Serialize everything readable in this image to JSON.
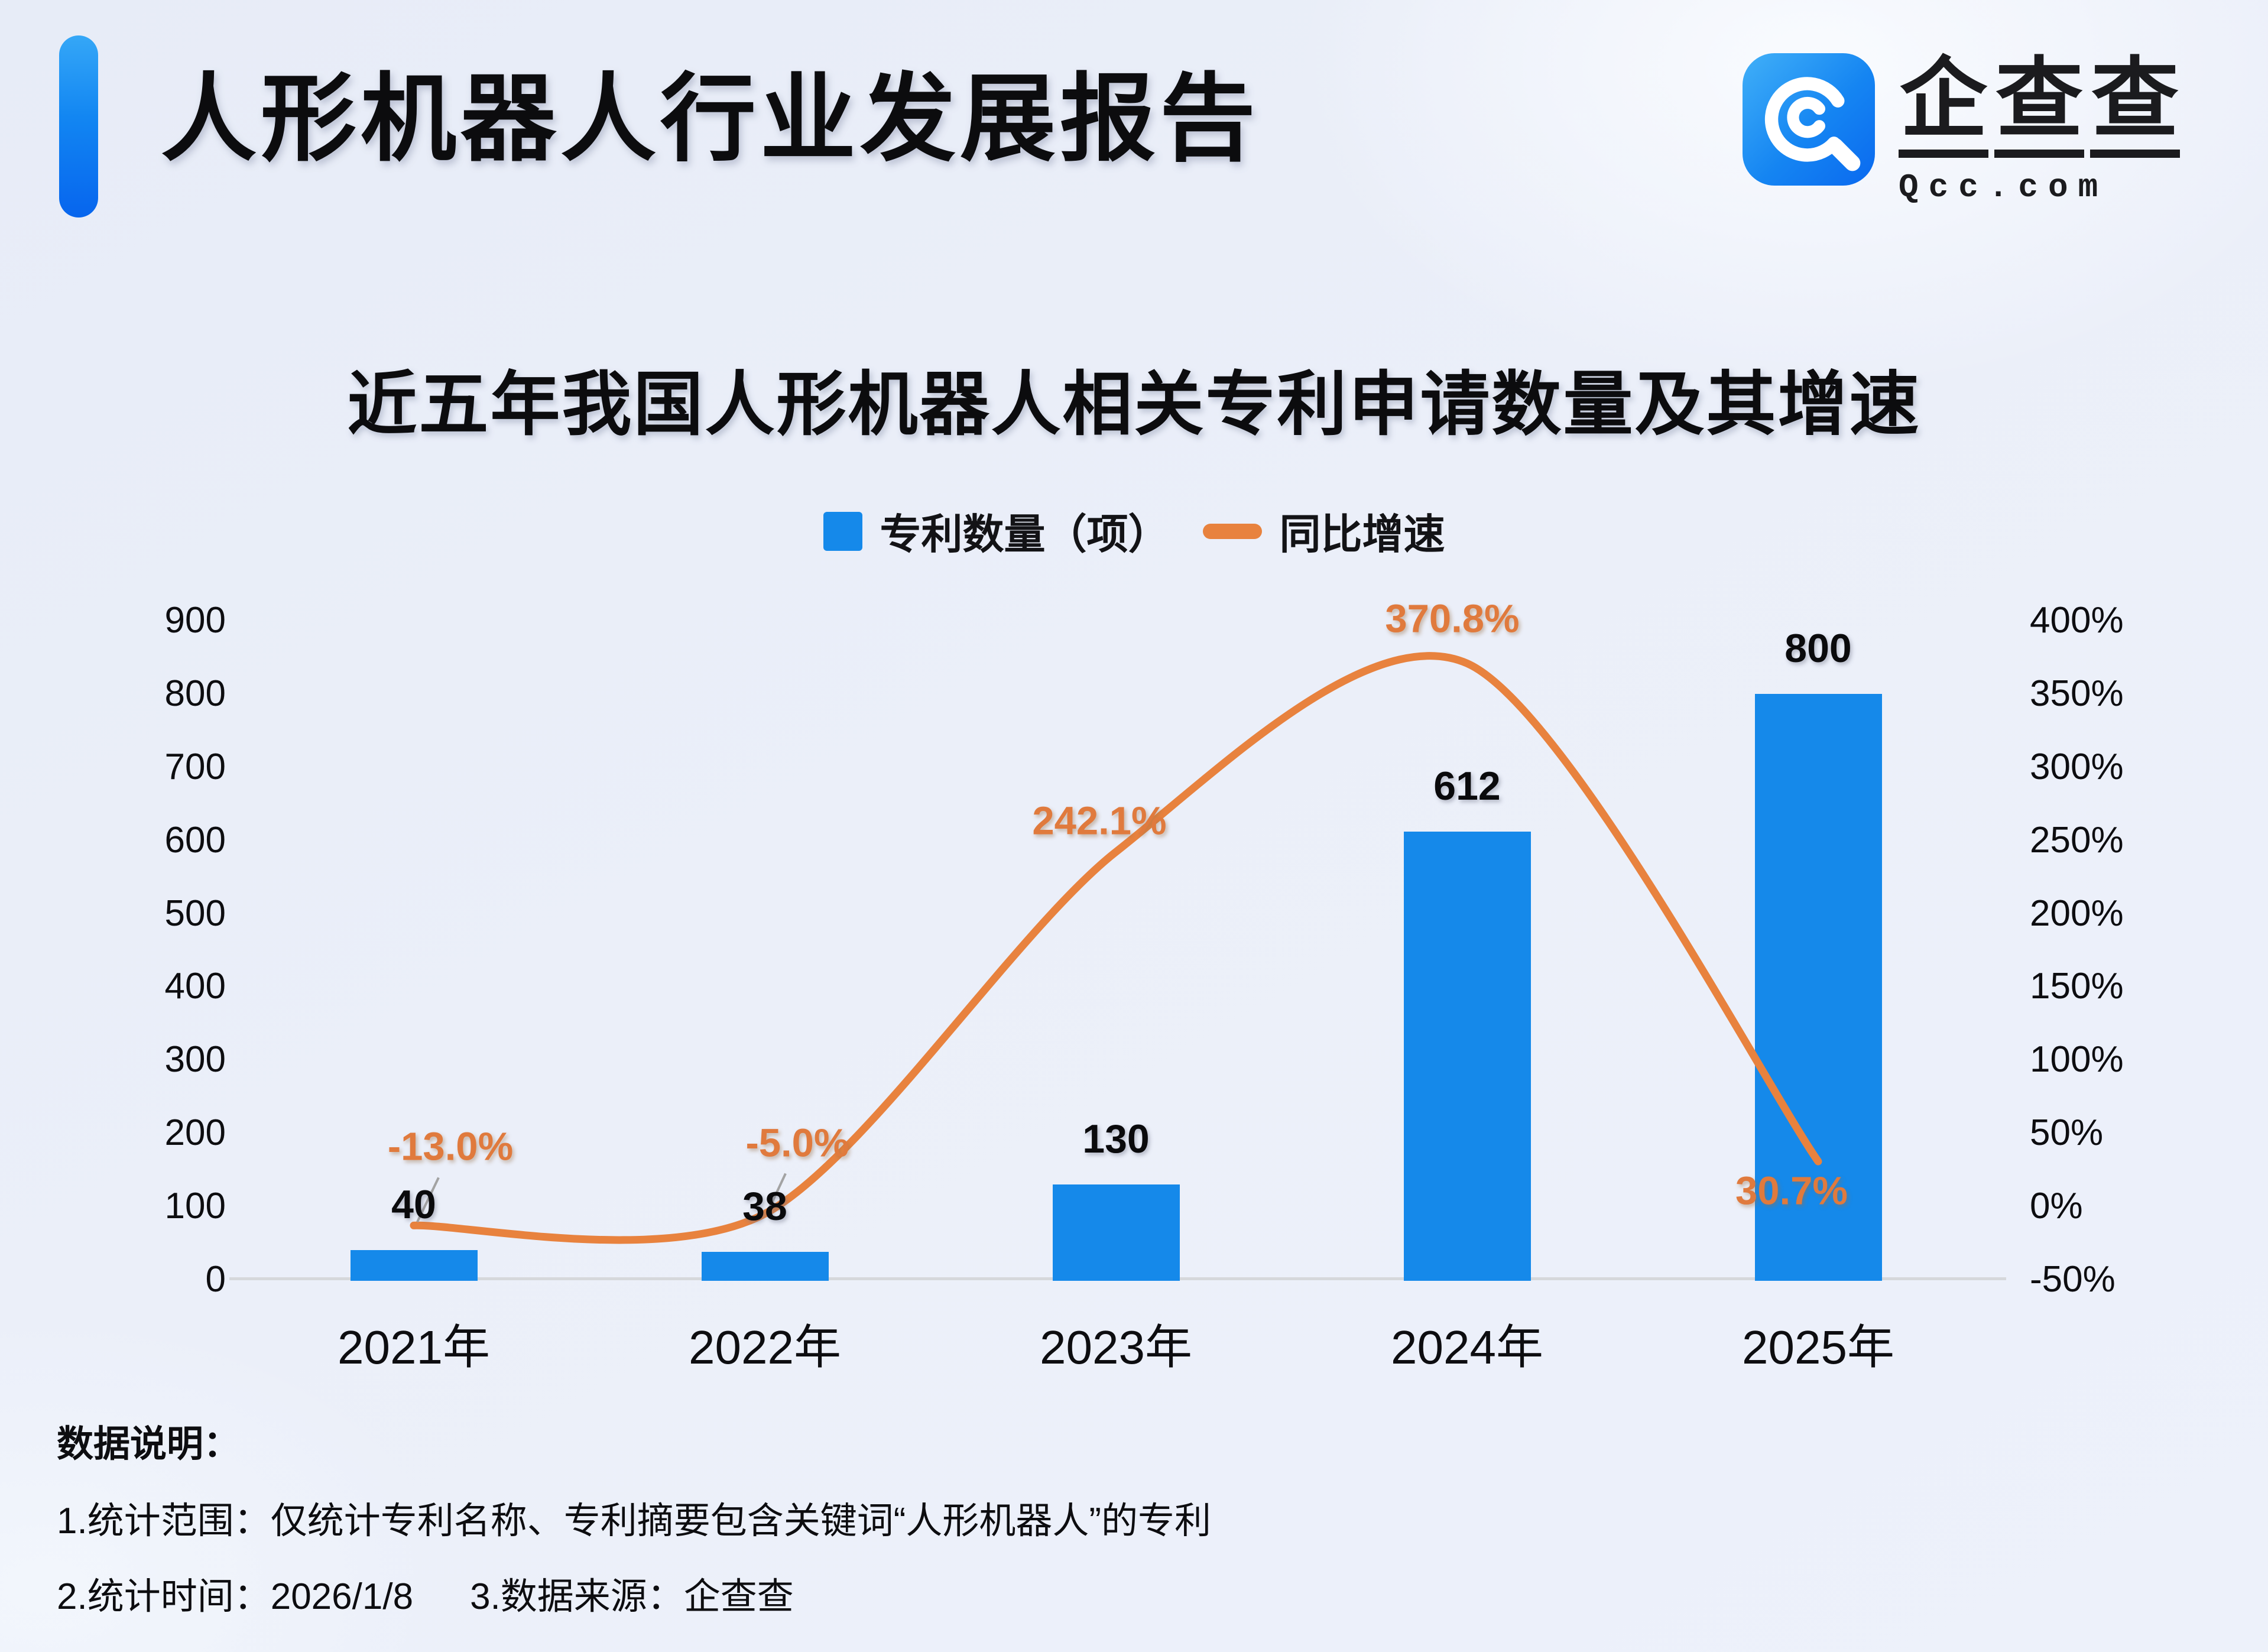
{
  "header": {
    "title": "人形机器人行业发展报告",
    "accent_color": "#1286f2"
  },
  "logo": {
    "brand_chars": [
      "企",
      "查",
      "查"
    ],
    "domain": "Qcc.com",
    "tile_color": "#1585f2",
    "mark": "qcc-q-magnifier-icon"
  },
  "chart_data": {
    "type": "bar+line",
    "title": "近五年我国人形机器人相关专利申请数量及其增速",
    "categories": [
      "2021年",
      "2022年",
      "2023年",
      "2024年",
      "2025年"
    ],
    "series": [
      {
        "name": "专利数量（项）",
        "type": "bar",
        "values": [
          40,
          38,
          130,
          612,
          800
        ],
        "color": "#1589EA"
      },
      {
        "name": "同比增速",
        "type": "line",
        "values_pct": [
          -13.0,
          -5.0,
          242.1,
          370.8,
          30.7
        ],
        "point_labels": [
          "-13.0%",
          "-5.0%",
          "242.1%",
          "370.8%",
          "30.7%"
        ],
        "color": "#E8823E",
        "label_color": "#E07A3D"
      }
    ],
    "left_axis": {
      "ticks": [
        "900",
        "800",
        "700",
        "600",
        "500",
        "400",
        "300",
        "200",
        "100",
        "0"
      ],
      "min": 0,
      "max": 900
    },
    "right_axis": {
      "ticks": [
        "400%",
        "350%",
        "300%",
        "250%",
        "200%",
        "150%",
        "100%",
        "50%",
        "0%",
        "-50%"
      ],
      "min": -50,
      "max": 400
    },
    "grid": false,
    "legend_position": "top-center",
    "baseline_color": "#d6d8db",
    "leader_line_color": "#a3a3a3"
  },
  "footer": {
    "heading": "数据说明：",
    "note1": "1.统计范围：仅统计专利名称、专利摘要包含关键词“人形机器人”的专利",
    "note2_time": "2.统计时间：2026/1/8",
    "note2_source": "3.数据来源：企查查"
  }
}
